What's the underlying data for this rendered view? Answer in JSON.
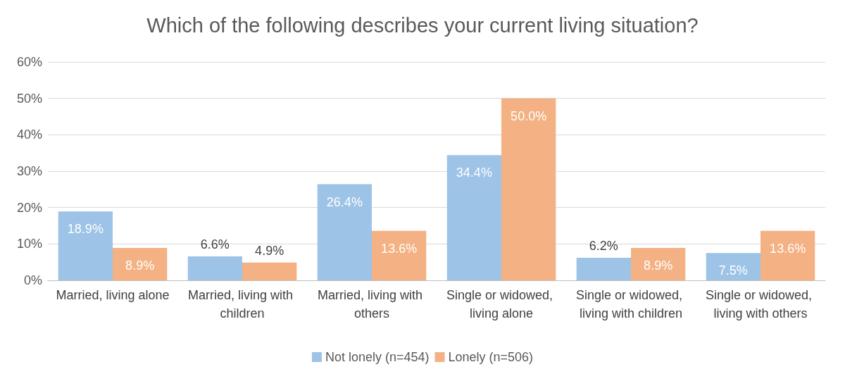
{
  "chart_data": {
    "type": "bar",
    "title": "Which of the following describes your current living situation?",
    "categories": [
      "Married, living alone",
      "Married, living with children",
      "Married, living with others",
      "Single or widowed, living alone",
      "Single or widowed, living with children",
      "Single or widowed, living with others"
    ],
    "series": [
      {
        "name": "Not lonely (n=454)",
        "color": "#9dc3e6",
        "values": [
          18.9,
          6.6,
          26.4,
          34.4,
          6.2,
          7.5
        ],
        "value_labels": [
          "18.9%",
          "6.6%",
          "26.4%",
          "34.4%",
          "6.2%",
          "7.5%"
        ]
      },
      {
        "name": "Lonely (n=506)",
        "color": "#f4b183",
        "values": [
          8.9,
          4.9,
          13.6,
          50.0,
          8.9,
          13.6
        ],
        "value_labels": [
          "8.9%",
          "4.9%",
          "13.6%",
          "50.0%",
          "8.9%",
          "13.6%"
        ]
      }
    ],
    "ylim": [
      0,
      60
    ],
    "yticks": [
      {
        "value": 0,
        "label": "0%"
      },
      {
        "value": 10,
        "label": "10%"
      },
      {
        "value": 20,
        "label": "20%"
      },
      {
        "value": 30,
        "label": "30%"
      },
      {
        "value": 40,
        "label": "40%"
      },
      {
        "value": 50,
        "label": "50%"
      },
      {
        "value": 60,
        "label": "60%"
      }
    ],
    "grid": "y",
    "legend": "bottom"
  }
}
